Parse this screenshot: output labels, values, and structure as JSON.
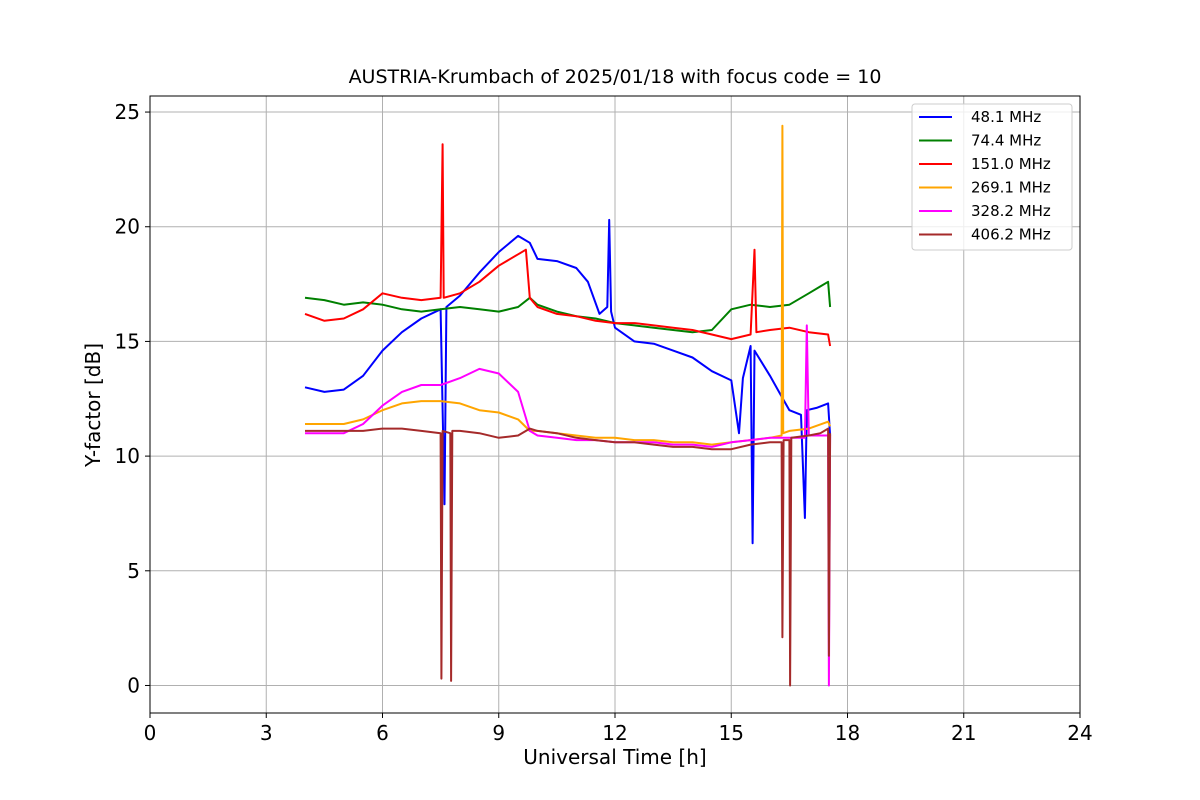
{
  "chart_data": {
    "type": "line",
    "title": "AUSTRIA-Krumbach of 2025/01/18 with focus code = 10",
    "xlabel": "Universal Time [h]",
    "ylabel": "Y-factor [dB]",
    "xlim": [
      0,
      24
    ],
    "ylim": [
      -1.2,
      25.7
    ],
    "xticks": [
      0,
      3,
      6,
      9,
      12,
      15,
      18,
      21,
      24
    ],
    "yticks": [
      0,
      5,
      10,
      15,
      20,
      25
    ],
    "grid": true,
    "legend_position": "top-right",
    "series": [
      {
        "name": "48.1 MHz",
        "color": "#0000ff",
        "points": [
          [
            4.0,
            13.0
          ],
          [
            4.5,
            12.8
          ],
          [
            5.0,
            12.9
          ],
          [
            5.5,
            13.5
          ],
          [
            6.0,
            14.6
          ],
          [
            6.5,
            15.4
          ],
          [
            7.0,
            16.0
          ],
          [
            7.5,
            16.4
          ],
          [
            7.6,
            7.9
          ],
          [
            7.65,
            16.5
          ],
          [
            8.0,
            17.0
          ],
          [
            8.5,
            18.0
          ],
          [
            9.0,
            18.9
          ],
          [
            9.5,
            19.6
          ],
          [
            9.8,
            19.3
          ],
          [
            10.0,
            18.6
          ],
          [
            10.5,
            18.5
          ],
          [
            11.0,
            18.2
          ],
          [
            11.3,
            17.6
          ],
          [
            11.6,
            16.2
          ],
          [
            11.8,
            16.5
          ],
          [
            11.85,
            20.3
          ],
          [
            11.9,
            16.3
          ],
          [
            12.0,
            15.6
          ],
          [
            12.5,
            15.0
          ],
          [
            13.0,
            14.9
          ],
          [
            13.5,
            14.6
          ],
          [
            14.0,
            14.3
          ],
          [
            14.5,
            13.7
          ],
          [
            15.0,
            13.3
          ],
          [
            15.2,
            11.0
          ],
          [
            15.3,
            13.4
          ],
          [
            15.5,
            14.8
          ],
          [
            15.55,
            6.2
          ],
          [
            15.6,
            14.6
          ],
          [
            16.0,
            13.5
          ],
          [
            16.3,
            12.6
          ],
          [
            16.5,
            12.0
          ],
          [
            16.8,
            11.8
          ],
          [
            16.9,
            7.3
          ],
          [
            16.95,
            12.0
          ],
          [
            17.2,
            12.1
          ],
          [
            17.5,
            12.3
          ],
          [
            17.55,
            10.9
          ]
        ]
      },
      {
        "name": "74.4 MHz",
        "color": "#008000",
        "points": [
          [
            4.0,
            16.9
          ],
          [
            4.5,
            16.8
          ],
          [
            5.0,
            16.6
          ],
          [
            5.5,
            16.7
          ],
          [
            6.0,
            16.6
          ],
          [
            6.5,
            16.4
          ],
          [
            7.0,
            16.3
          ],
          [
            7.5,
            16.4
          ],
          [
            8.0,
            16.5
          ],
          [
            8.5,
            16.4
          ],
          [
            9.0,
            16.3
          ],
          [
            9.5,
            16.5
          ],
          [
            9.8,
            16.9
          ],
          [
            10.0,
            16.6
          ],
          [
            10.5,
            16.3
          ],
          [
            11.0,
            16.1
          ],
          [
            11.5,
            16.0
          ],
          [
            12.0,
            15.8
          ],
          [
            12.5,
            15.7
          ],
          [
            13.0,
            15.6
          ],
          [
            13.5,
            15.5
          ],
          [
            14.0,
            15.4
          ],
          [
            14.5,
            15.5
          ],
          [
            15.0,
            16.4
          ],
          [
            15.5,
            16.6
          ],
          [
            16.0,
            16.5
          ],
          [
            16.5,
            16.6
          ],
          [
            17.0,
            17.1
          ],
          [
            17.3,
            17.4
          ],
          [
            17.5,
            17.6
          ],
          [
            17.55,
            16.5
          ]
        ]
      },
      {
        "name": "151.0 MHz",
        "color": "#ff0000",
        "points": [
          [
            4.0,
            16.2
          ],
          [
            4.5,
            15.9
          ],
          [
            5.0,
            16.0
          ],
          [
            5.5,
            16.4
          ],
          [
            6.0,
            17.1
          ],
          [
            6.5,
            16.9
          ],
          [
            7.0,
            16.8
          ],
          [
            7.5,
            16.9
          ],
          [
            7.55,
            23.6
          ],
          [
            7.58,
            16.9
          ],
          [
            8.0,
            17.1
          ],
          [
            8.5,
            17.6
          ],
          [
            9.0,
            18.3
          ],
          [
            9.5,
            18.8
          ],
          [
            9.7,
            19.0
          ],
          [
            9.8,
            16.9
          ],
          [
            10.0,
            16.5
          ],
          [
            10.5,
            16.2
          ],
          [
            11.0,
            16.1
          ],
          [
            11.5,
            15.9
          ],
          [
            12.0,
            15.8
          ],
          [
            12.5,
            15.8
          ],
          [
            13.0,
            15.7
          ],
          [
            13.5,
            15.6
          ],
          [
            14.0,
            15.5
          ],
          [
            14.5,
            15.3
          ],
          [
            15.0,
            15.1
          ],
          [
            15.5,
            15.3
          ],
          [
            15.6,
            19.0
          ],
          [
            15.65,
            15.4
          ],
          [
            16.0,
            15.5
          ],
          [
            16.5,
            15.6
          ],
          [
            17.0,
            15.4
          ],
          [
            17.5,
            15.3
          ],
          [
            17.55,
            14.8
          ]
        ]
      },
      {
        "name": "269.1 MHz",
        "color": "#ffa500",
        "points": [
          [
            4.0,
            11.4
          ],
          [
            5.0,
            11.4
          ],
          [
            5.5,
            11.6
          ],
          [
            6.0,
            12.0
          ],
          [
            6.5,
            12.3
          ],
          [
            7.0,
            12.4
          ],
          [
            7.5,
            12.4
          ],
          [
            8.0,
            12.3
          ],
          [
            8.5,
            12.0
          ],
          [
            9.0,
            11.9
          ],
          [
            9.5,
            11.6
          ],
          [
            9.8,
            11.1
          ],
          [
            10.0,
            11.1
          ],
          [
            10.5,
            11.0
          ],
          [
            11.0,
            10.9
          ],
          [
            11.5,
            10.8
          ],
          [
            12.0,
            10.8
          ],
          [
            12.5,
            10.7
          ],
          [
            13.0,
            10.7
          ],
          [
            13.5,
            10.6
          ],
          [
            14.0,
            10.6
          ],
          [
            14.5,
            10.5
          ],
          [
            15.0,
            10.6
          ],
          [
            15.5,
            10.7
          ],
          [
            16.0,
            10.8
          ],
          [
            16.3,
            10.9
          ],
          [
            16.32,
            24.4
          ],
          [
            16.34,
            11.0
          ],
          [
            16.5,
            11.1
          ],
          [
            17.0,
            11.2
          ],
          [
            17.5,
            11.5
          ],
          [
            17.55,
            11.3
          ]
        ]
      },
      {
        "name": "328.2 MHz",
        "color": "#ff00ff",
        "points": [
          [
            4.0,
            11.0
          ],
          [
            5.0,
            11.0
          ],
          [
            5.5,
            11.4
          ],
          [
            6.0,
            12.2
          ],
          [
            6.5,
            12.8
          ],
          [
            7.0,
            13.1
          ],
          [
            7.5,
            13.1
          ],
          [
            8.0,
            13.4
          ],
          [
            8.5,
            13.8
          ],
          [
            9.0,
            13.6
          ],
          [
            9.5,
            12.8
          ],
          [
            9.8,
            11.1
          ],
          [
            10.0,
            10.9
          ],
          [
            10.5,
            10.8
          ],
          [
            11.0,
            10.7
          ],
          [
            11.5,
            10.7
          ],
          [
            12.0,
            10.6
          ],
          [
            12.5,
            10.6
          ],
          [
            13.0,
            10.6
          ],
          [
            13.5,
            10.5
          ],
          [
            14.0,
            10.5
          ],
          [
            14.5,
            10.4
          ],
          [
            15.0,
            10.6
          ],
          [
            15.5,
            10.7
          ],
          [
            16.0,
            10.8
          ],
          [
            16.5,
            10.8
          ],
          [
            16.9,
            10.8
          ],
          [
            16.95,
            15.7
          ],
          [
            17.0,
            10.9
          ],
          [
            17.5,
            10.9
          ],
          [
            17.52,
            0.0
          ],
          [
            17.55,
            10.9
          ]
        ]
      },
      {
        "name": "406.2 MHz",
        "color": "#a52a2a",
        "points": [
          [
            4.0,
            11.1
          ],
          [
            5.0,
            11.1
          ],
          [
            5.5,
            11.1
          ],
          [
            6.0,
            11.2
          ],
          [
            6.5,
            11.2
          ],
          [
            7.0,
            11.1
          ],
          [
            7.5,
            11.0
          ],
          [
            7.52,
            0.3
          ],
          [
            7.55,
            11.1
          ],
          [
            7.75,
            11.0
          ],
          [
            7.77,
            0.2
          ],
          [
            7.8,
            11.1
          ],
          [
            8.0,
            11.1
          ],
          [
            8.5,
            11.0
          ],
          [
            9.0,
            10.8
          ],
          [
            9.5,
            10.9
          ],
          [
            9.8,
            11.2
          ],
          [
            10.0,
            11.1
          ],
          [
            10.5,
            11.0
          ],
          [
            11.0,
            10.8
          ],
          [
            11.5,
            10.7
          ],
          [
            12.0,
            10.6
          ],
          [
            12.5,
            10.6
          ],
          [
            13.0,
            10.5
          ],
          [
            13.5,
            10.4
          ],
          [
            14.0,
            10.4
          ],
          [
            14.5,
            10.3
          ],
          [
            15.0,
            10.3
          ],
          [
            15.5,
            10.5
          ],
          [
            16.0,
            10.6
          ],
          [
            16.3,
            10.6
          ],
          [
            16.32,
            2.1
          ],
          [
            16.35,
            10.7
          ],
          [
            16.5,
            10.7
          ],
          [
            16.52,
            0.0
          ],
          [
            16.55,
            10.8
          ],
          [
            17.0,
            10.9
          ],
          [
            17.3,
            11.0
          ],
          [
            17.5,
            11.2
          ],
          [
            17.52,
            1.3
          ],
          [
            17.55,
            11.0
          ]
        ]
      }
    ]
  }
}
